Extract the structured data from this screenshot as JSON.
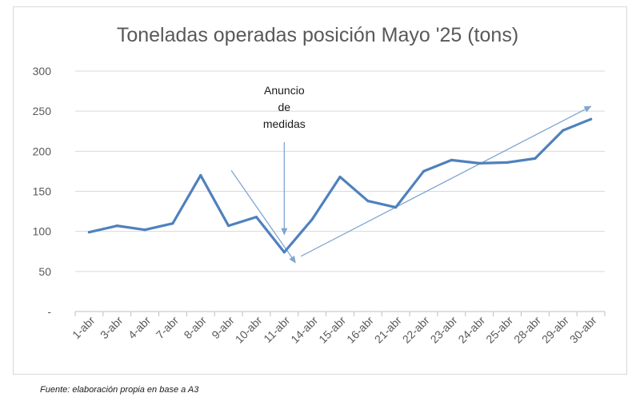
{
  "chart_data": {
    "type": "line",
    "title": "Toneladas operadas posición Mayo '25 (tons)",
    "xlabel": "",
    "ylabel": "",
    "ylim": [
      0,
      300
    ],
    "yticks": [
      0,
      50,
      100,
      150,
      200,
      250,
      300
    ],
    "ytick_labels": [
      "-",
      "50",
      "100",
      "150",
      "200",
      "250",
      "300"
    ],
    "grid": true,
    "categories": [
      "1-abr",
      "3-abr",
      "4-abr",
      "7-abr",
      "8-abr",
      "9-abr",
      "10-abr",
      "11-abr",
      "14-abr",
      "15-abr",
      "16-abr",
      "21-abr",
      "22-abr",
      "23-abr",
      "24-abr",
      "25-abr",
      "28-abr",
      "29-abr",
      "30-abr"
    ],
    "series": [
      {
        "name": "Toneladas",
        "color": "#4f81bd",
        "values": [
          99,
          107,
          102,
          110,
          170,
          107,
          118,
          74,
          115,
          168,
          138,
          130,
          175,
          189,
          185,
          186,
          191,
          226,
          240
        ]
      }
    ],
    "annotations": [
      {
        "text": [
          "Anuncio",
          "de",
          "medidas"
        ],
        "target_category": "11-abr",
        "target_value": 96
      }
    ],
    "trend_arrows": [
      {
        "from": {
          "x": 5.1,
          "y": 176
        },
        "to": {
          "x": 7.4,
          "y": 61
        }
      },
      {
        "from": {
          "x": 7.6,
          "y": 69
        },
        "to": {
          "x": 18.0,
          "y": 256
        }
      }
    ]
  },
  "source": "Fuente: elaboración propia en base a A3"
}
